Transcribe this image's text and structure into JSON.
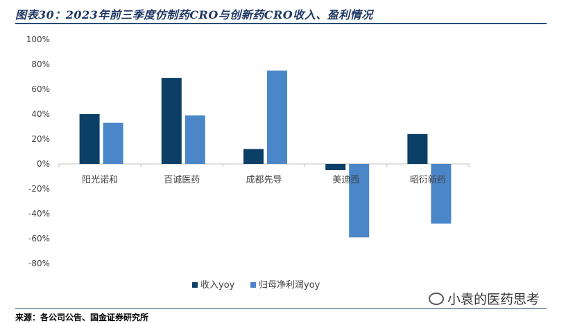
{
  "figure": {
    "title": "图表30：2023年前三季度仿制药CRO与创新药CRO收入、盈利情况",
    "source": "来源：各公司公告、国金证券研究所",
    "watermark": "小袁的医药思考",
    "watermark_icon": "wechat-icon"
  },
  "colors": {
    "title": "#1f3864",
    "rule": "#1f4e79",
    "series_revenue": "#0b3f66",
    "series_profit": "#4a86c8"
  },
  "chart_data": {
    "type": "bar",
    "categories": [
      "阳光诺和",
      "百诚医药",
      "成都先导",
      "美迪西",
      "昭衍新药"
    ],
    "series": [
      {
        "name": "收入yoy",
        "values": [
          40,
          69,
          12,
          -5,
          24
        ],
        "color": "#0b3f66"
      },
      {
        "name": "归母净利润yoy",
        "values": [
          33,
          39,
          75,
          -59,
          -48
        ],
        "color": "#4a86c8"
      }
    ],
    "ylim": [
      -80,
      100
    ],
    "yticks": [
      "100%",
      "80%",
      "60%",
      "40%",
      "20%",
      "0%",
      "-20%",
      "-40%",
      "-60%",
      "-80%"
    ],
    "ytick_values": [
      100,
      80,
      60,
      40,
      20,
      0,
      -20,
      -40,
      -60,
      -80
    ],
    "legend_position": "bottom",
    "grid": false
  }
}
